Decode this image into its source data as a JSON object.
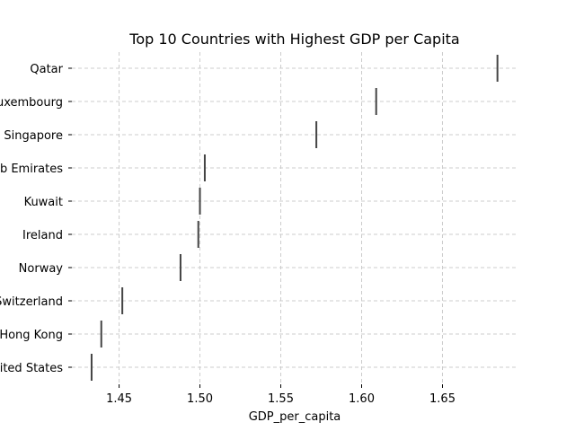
{
  "chart_data": {
    "type": "box",
    "title": "Top 10 Countries with Highest GDP per Capita",
    "xlabel": "GDP_per_capita",
    "ylabel": "",
    "categories": [
      "Qatar",
      "Luxembourg",
      "Singapore",
      "United Arab Emirates",
      "Kuwait",
      "Ireland",
      "Norway",
      "Switzerland",
      "Hong Kong",
      "United States"
    ],
    "values": [
      1.684,
      1.609,
      1.572,
      1.503,
      1.5,
      1.499,
      1.488,
      1.452,
      1.439,
      1.433
    ],
    "xlim": [
      1.4208,
      1.6964
    ],
    "xticks": [
      1.45,
      1.5,
      1.55,
      1.6,
      1.65
    ],
    "xtick_labels": [
      "1.45",
      "1.50",
      "1.55",
      "1.60",
      "1.65"
    ],
    "grid": true,
    "mark_color": "#444444",
    "grid_color": "#cccccc"
  }
}
